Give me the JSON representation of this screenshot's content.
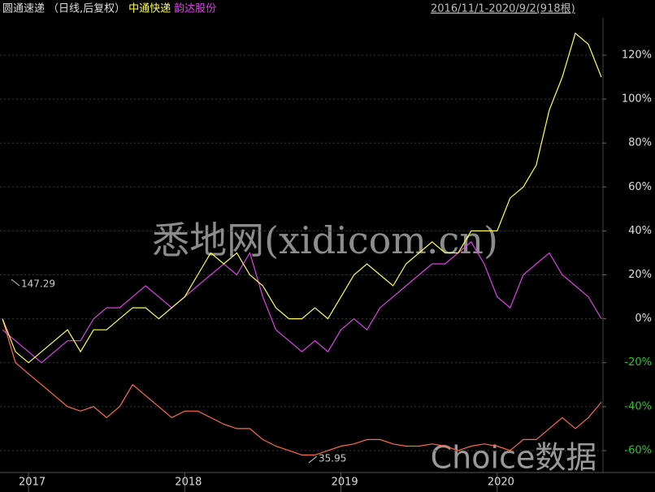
{
  "chart_data": {
    "type": "line",
    "subtitle": "（日线,后复权）",
    "range_label": "2016/11/1-2020/9/2(918根)",
    "categories": [
      null,
      null,
      "2017",
      null,
      null,
      null,
      null,
      null,
      null,
      null,
      null,
      null,
      null,
      null,
      "2018",
      null,
      null,
      null,
      null,
      null,
      null,
      null,
      null,
      null,
      null,
      null,
      "2019",
      null,
      null,
      null,
      null,
      null,
      null,
      null,
      null,
      null,
      null,
      null,
      "2020",
      null,
      null,
      null,
      null,
      null,
      null,
      null,
      null
    ],
    "series": [
      {
        "name": "圆通速递",
        "color": "#ff6a4a",
        "values": [
          0,
          -20,
          -25,
          -30,
          -35,
          -40,
          -42,
          -40,
          -45,
          -40,
          -30,
          -35,
          -40,
          -45,
          -42,
          -42,
          -45,
          -48,
          -50,
          -50,
          -55,
          -58,
          -60,
          -62,
          -62,
          -60,
          -58,
          -57,
          -55,
          -55,
          -57,
          -58,
          -58,
          -57,
          -58,
          -60,
          -58,
          -57,
          -58,
          -60,
          -55,
          -55,
          -50,
          -45,
          -50,
          -45,
          -38
        ]
      },
      {
        "name": "中通快递",
        "color": "#ffff55",
        "values": [
          0,
          -15,
          -20,
          -15,
          -10,
          -5,
          -15,
          -5,
          -5,
          0,
          5,
          5,
          0,
          5,
          10,
          20,
          30,
          25,
          30,
          20,
          15,
          5,
          0,
          0,
          5,
          0,
          10,
          20,
          25,
          20,
          15,
          25,
          30,
          35,
          30,
          30,
          40,
          40,
          40,
          55,
          60,
          70,
          95,
          110,
          130,
          125,
          110
        ]
      },
      {
        "name": "韵达股份",
        "color": "#e040e8",
        "values": [
          -5,
          -10,
          -15,
          -20,
          -15,
          -10,
          -10,
          0,
          5,
          5,
          10,
          15,
          10,
          5,
          10,
          15,
          20,
          25,
          20,
          30,
          10,
          -5,
          -10,
          -15,
          -10,
          -15,
          -5,
          0,
          -5,
          5,
          10,
          15,
          20,
          25,
          25,
          30,
          35,
          25,
          10,
          5,
          20,
          25,
          30,
          20,
          15,
          10,
          0
        ]
      }
    ],
    "ylim": [
      -70,
      137
    ],
    "yticks": [
      {
        "value": 120,
        "label": "120%"
      },
      {
        "value": 100,
        "label": "100%"
      },
      {
        "value": 80,
        "label": "80%"
      },
      {
        "value": 60,
        "label": "60%"
      },
      {
        "value": 40,
        "label": "40%"
      },
      {
        "value": 20,
        "label": "20%"
      },
      {
        "value": 0,
        "label": "0%"
      },
      {
        "value": -20,
        "label": "-20%"
      },
      {
        "value": -40,
        "label": "-40%"
      },
      {
        "value": -60,
        "label": "-60%"
      }
    ],
    "grid": true,
    "annotations": [
      {
        "text": "147.29"
      },
      {
        "text": "35.95"
      }
    ],
    "watermarks": [
      "悉地网(xidicom.cn)",
      "Choice数据"
    ]
  }
}
